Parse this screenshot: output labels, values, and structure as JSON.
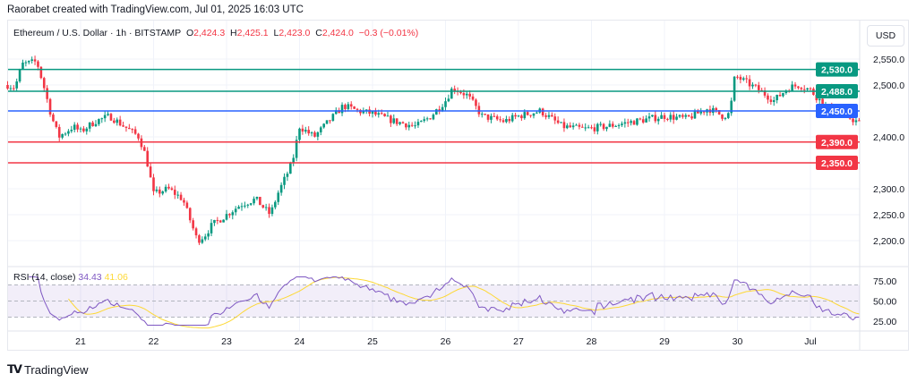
{
  "header": "Raorabet created with TradingView.com, Jul 01, 2025 16:03 UTC",
  "legend": {
    "symbol": "Ethereum / U.S. Dollar · 1h · BITSTAMP",
    "o_label": "O",
    "o": "2,424.3",
    "h_label": "H",
    "h": "2,425.1",
    "l_label": "L",
    "l": "2,423.0",
    "c_label": "C",
    "c": "2,424.0",
    "change": "−0.3 (−0.01%)"
  },
  "currency": "USD",
  "rsi": {
    "label": "RSI (14, close)",
    "value": "34.43",
    "ma": "41.06",
    "ticks": [
      "75.00",
      "50.00",
      "25.00"
    ]
  },
  "brand": "TradingView",
  "colors": {
    "up": "#089981",
    "down": "#f23645",
    "resistance": "#089981",
    "pivot": "#2962ff",
    "support": "#f23645",
    "rsi": "#7e57c2",
    "rsi_ma": "#fdd835"
  },
  "chart_data": {
    "type": "candlestick",
    "interval": "1h",
    "ylim": [
      2150,
      2575
    ],
    "y_ticks": [
      "2,550.0",
      "2,500.0",
      "2,400.0",
      "2,300.0",
      "2,250.0",
      "2,200.0"
    ],
    "x_ticks": [
      {
        "day": 21,
        "label": "21"
      },
      {
        "day": 22,
        "label": "22"
      },
      {
        "day": 23,
        "label": "23"
      },
      {
        "day": 24,
        "label": "24"
      },
      {
        "day": 25,
        "label": "25"
      },
      {
        "day": 26,
        "label": "26"
      },
      {
        "day": 27,
        "label": "27"
      },
      {
        "day": 28,
        "label": "28"
      },
      {
        "day": 29,
        "label": "29"
      },
      {
        "day": 30,
        "label": "30"
      },
      {
        "day": 31,
        "label": "Jul"
      }
    ],
    "levels": [
      {
        "price": 2530,
        "label": "2,530.0",
        "kind": "resistance"
      },
      {
        "price": 2488,
        "label": "2,488.0",
        "kind": "resistance"
      },
      {
        "price": 2450,
        "label": "2,450.0",
        "kind": "pivot"
      },
      {
        "price": 2390,
        "label": "2,390.0",
        "kind": "support"
      },
      {
        "price": 2350,
        "label": "2,350.0",
        "kind": "support"
      }
    ],
    "price_path": [
      [
        20.0,
        2500
      ],
      [
        20.1,
        2495
      ],
      [
        20.2,
        2540
      ],
      [
        20.4,
        2545
      ],
      [
        20.5,
        2495
      ],
      [
        20.6,
        2440
      ],
      [
        20.7,
        2400
      ],
      [
        20.9,
        2420
      ],
      [
        21.0,
        2410
      ],
      [
        21.2,
        2430
      ],
      [
        21.4,
        2440
      ],
      [
        21.6,
        2420
      ],
      [
        21.8,
        2400
      ],
      [
        21.9,
        2360
      ],
      [
        22.0,
        2290
      ],
      [
        22.2,
        2300
      ],
      [
        22.4,
        2280
      ],
      [
        22.5,
        2240
      ],
      [
        22.6,
        2200
      ],
      [
        22.7,
        2210
      ],
      [
        22.8,
        2230
      ],
      [
        23.0,
        2250
      ],
      [
        23.2,
        2270
      ],
      [
        23.4,
        2280
      ],
      [
        23.6,
        2250
      ],
      [
        23.7,
        2290
      ],
      [
        23.9,
        2350
      ],
      [
        24.0,
        2420
      ],
      [
        24.2,
        2400
      ],
      [
        24.4,
        2430
      ],
      [
        24.6,
        2460
      ],
      [
        24.8,
        2450
      ],
      [
        25.0,
        2445
      ],
      [
        25.3,
        2430
      ],
      [
        25.6,
        2420
      ],
      [
        25.8,
        2440
      ],
      [
        26.0,
        2470
      ],
      [
        26.1,
        2495
      ],
      [
        26.3,
        2480
      ],
      [
        26.5,
        2440
      ],
      [
        26.8,
        2430
      ],
      [
        27.0,
        2440
      ],
      [
        27.3,
        2450
      ],
      [
        27.6,
        2420
      ],
      [
        27.9,
        2415
      ],
      [
        28.2,
        2420
      ],
      [
        28.6,
        2430
      ],
      [
        29.0,
        2440
      ],
      [
        29.3,
        2435
      ],
      [
        29.6,
        2455
      ],
      [
        29.8,
        2440
      ],
      [
        29.9,
        2445
      ],
      [
        29.95,
        2510
      ],
      [
        30.0,
        2515
      ],
      [
        30.3,
        2490
      ],
      [
        30.5,
        2470
      ],
      [
        30.7,
        2495
      ],
      [
        30.85,
        2500
      ],
      [
        31.0,
        2490
      ],
      [
        31.2,
        2460
      ],
      [
        31.5,
        2440
      ],
      [
        31.7,
        2424
      ]
    ]
  }
}
